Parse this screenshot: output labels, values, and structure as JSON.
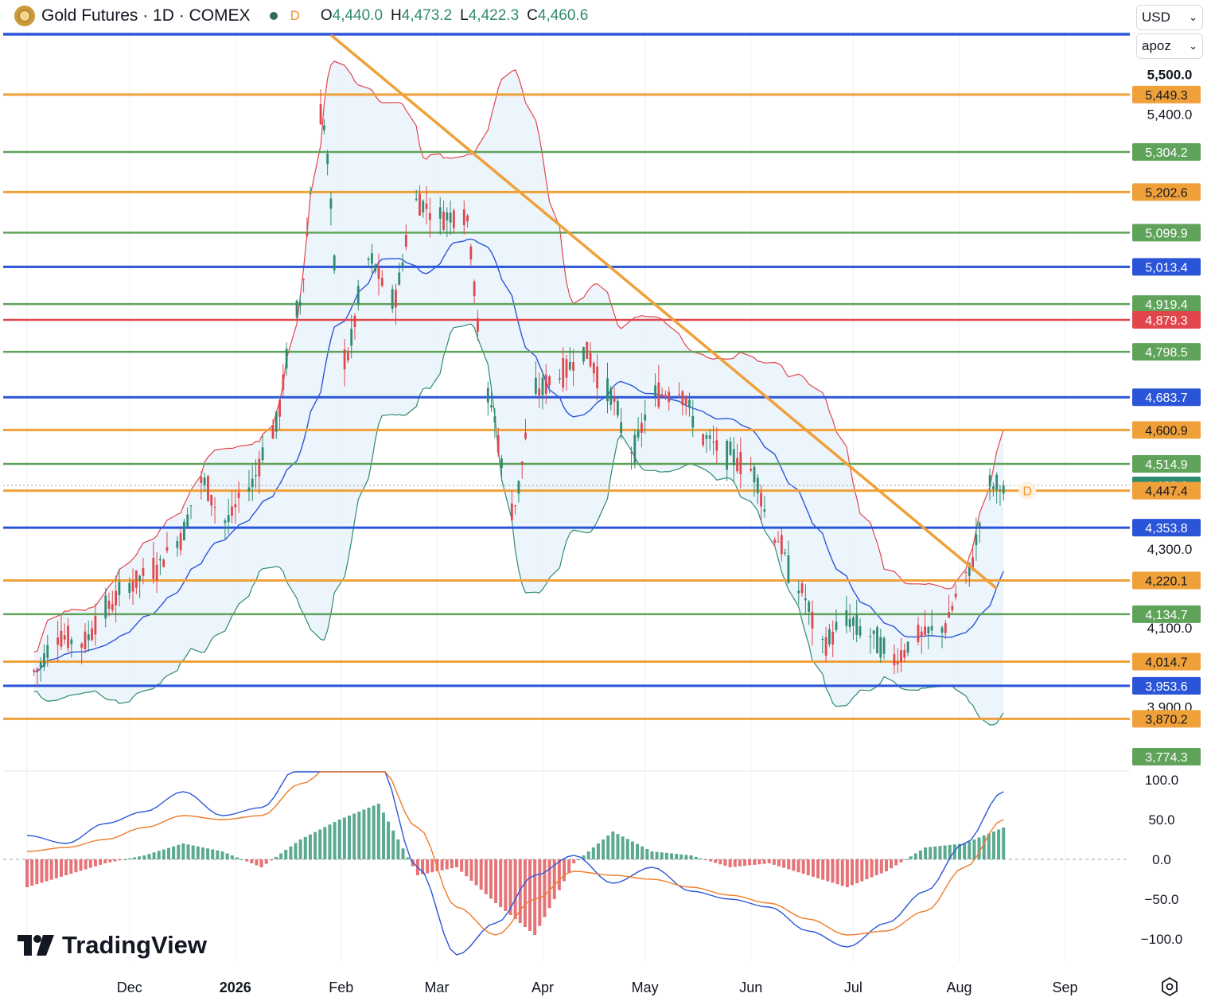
{
  "header": {
    "title": "Gold Futures · 1D · COMEX",
    "d_badge": "D",
    "ohlc": [
      {
        "k": "O",
        "v": "4,440.0"
      },
      {
        "k": "H",
        "v": "4,473.2"
      },
      {
        "k": "L",
        "v": "4,422.3"
      },
      {
        "k": "C",
        "v": "4,460.6"
      }
    ]
  },
  "currency_select": "USD",
  "scale_select": "apoz",
  "brand": "TradingView",
  "colors": {
    "up": "#2f8a70",
    "down": "#e0464c",
    "orange": "#f0a039",
    "green_line": "#5fa35a",
    "blue_line": "#2b55d8",
    "red_line": "#e0464c",
    "band_fill": "#e9f3fb"
  },
  "chart_data": [
    {
      "type": "candlestick",
      "title": "Gold Futures · 1D · COMEX",
      "ylim": [
        3740,
        5600
      ],
      "y_ticks": [
        "5,500.0",
        "5,400.0",
        "4,300.0",
        "4,100.0",
        "3,900.0"
      ],
      "x_ticks": [
        "Dec",
        "2026",
        "Feb",
        "Mar",
        "Apr",
        "May",
        "Jun",
        "Jul",
        "Aug",
        "Sep"
      ],
      "last_price_marker": "D",
      "horizontal_levels": [
        {
          "price": 5449.3,
          "label": "5,449.3",
          "color": "orange"
        },
        {
          "price": 5304.2,
          "label": "5,304.2",
          "color": "green"
        },
        {
          "price": 5202.6,
          "label": "5,202.6",
          "color": "orange"
        },
        {
          "price": 5099.9,
          "label": "5,099.9",
          "color": "green"
        },
        {
          "price": 5013.4,
          "label": "5,013.4",
          "color": "blue"
        },
        {
          "price": 4919.4,
          "label": "4,919.4",
          "color": "green"
        },
        {
          "price": 4879.3,
          "label": "4,879.3",
          "color": "red"
        },
        {
          "price": 4798.5,
          "label": "4,798.5",
          "color": "green"
        },
        {
          "price": 4683.7,
          "label": "4,683.7",
          "color": "blue"
        },
        {
          "price": 4600.9,
          "label": "4,600.9",
          "color": "orange"
        },
        {
          "price": 4514.9,
          "label": "4,514.9",
          "color": "green"
        },
        {
          "price": 4460.6,
          "label": "4,460.6",
          "color": "teal",
          "current": true
        },
        {
          "price": 4447.4,
          "label": "4,447.4",
          "color": "orange"
        },
        {
          "price": 4353.8,
          "label": "4,353.8",
          "color": "blue"
        },
        {
          "price": 4220.1,
          "label": "4,220.1",
          "color": "orange"
        },
        {
          "price": 4134.7,
          "label": "4,134.7",
          "color": "green"
        },
        {
          "price": 4014.7,
          "label": "4,014.7",
          "color": "orange"
        },
        {
          "price": 3953.6,
          "label": "3,953.6",
          "color": "blue"
        },
        {
          "price": 3870.2,
          "label": "3,870.2",
          "color": "orange"
        },
        {
          "price": 3774.3,
          "label": "3,774.3",
          "color": "green",
          "label_only": true
        }
      ],
      "top_line": {
        "color": "blue"
      },
      "trendline": {
        "from": {
          "date": "2026-01-29",
          "price": 5600
        },
        "to": {
          "date": "2026-08-12",
          "price": 4200
        }
      },
      "price_path": [
        {
          "date": "2025-11-03",
          "close": 3990
        },
        {
          "date": "2025-11-10",
          "close": 4080
        },
        {
          "date": "2025-11-17",
          "close": 4060
        },
        {
          "date": "2025-11-24",
          "close": 4150
        },
        {
          "date": "2025-12-01",
          "close": 4210
        },
        {
          "date": "2025-12-08",
          "close": 4250
        },
        {
          "date": "2025-12-15",
          "close": 4320
        },
        {
          "date": "2025-12-22",
          "close": 4470
        },
        {
          "date": "2025-12-29",
          "close": 4370
        },
        {
          "date": "2026-01-05",
          "close": 4460
        },
        {
          "date": "2026-01-12",
          "close": 4600
        },
        {
          "date": "2026-01-19",
          "close": 4900
        },
        {
          "date": "2026-01-26",
          "close": 5400
        },
        {
          "date": "2026-02-02",
          "close": 4780
        },
        {
          "date": "2026-02-09",
          "close": 5030
        },
        {
          "date": "2026-02-16",
          "close": 4930
        },
        {
          "date": "2026-02-23",
          "close": 5180
        },
        {
          "date": "2026-03-02",
          "close": 5140
        },
        {
          "date": "2026-03-09",
          "close": 5150
        },
        {
          "date": "2026-03-16",
          "close": 4680
        },
        {
          "date": "2026-03-23",
          "close": 4400
        },
        {
          "date": "2026-03-30",
          "close": 4700
        },
        {
          "date": "2026-04-06",
          "close": 4740
        },
        {
          "date": "2026-04-13",
          "close": 4800
        },
        {
          "date": "2026-04-20",
          "close": 4700
        },
        {
          "date": "2026-04-27",
          "close": 4550
        },
        {
          "date": "2026-05-04",
          "close": 4690
        },
        {
          "date": "2026-05-11",
          "close": 4700
        },
        {
          "date": "2026-05-18",
          "close": 4580
        },
        {
          "date": "2026-05-25",
          "close": 4540
        },
        {
          "date": "2026-06-01",
          "close": 4500
        },
        {
          "date": "2026-06-08",
          "close": 4330
        },
        {
          "date": "2026-06-15",
          "close": 4200
        },
        {
          "date": "2026-06-22",
          "close": 4060
        },
        {
          "date": "2026-06-29",
          "close": 4120
        },
        {
          "date": "2026-07-06",
          "close": 4080
        },
        {
          "date": "2026-07-13",
          "close": 4020
        },
        {
          "date": "2026-07-20",
          "close": 4080
        },
        {
          "date": "2026-07-27",
          "close": 4100
        },
        {
          "date": "2026-08-03",
          "close": 4230
        },
        {
          "date": "2026-08-10",
          "close": 4460.6
        }
      ]
    },
    {
      "type": "line",
      "ylim": [
        -130,
        110
      ],
      "y_ticks": [
        "100.0",
        "50.0",
        "0.0",
        "−50.0",
        "−100.0"
      ],
      "series": [
        {
          "values": [
            30,
            20,
            45,
            60,
            85,
            55,
            65,
            120,
            150,
            120,
            -10,
            -120,
            -80,
            -20,
            5,
            -30,
            -10,
            -40,
            -50,
            -60,
            -90,
            -110,
            -80,
            -40,
            20,
            85
          ],
          "color": "blue"
        },
        {
          "values": [
            10,
            15,
            25,
            40,
            55,
            50,
            55,
            95,
            125,
            120,
            40,
            -60,
            -95,
            -50,
            -15,
            -20,
            -25,
            -35,
            -45,
            -55,
            -75,
            -95,
            -90,
            -65,
            -10,
            50
          ],
          "color": "orange"
        }
      ],
      "histogram": [
        -35,
        -20,
        -5,
        5,
        20,
        10,
        -10,
        25,
        50,
        70,
        -20,
        -10,
        -55,
        -95,
        -5,
        35,
        10,
        5,
        -10,
        -5,
        -20,
        -35,
        -15,
        15,
        20,
        40
      ]
    }
  ]
}
